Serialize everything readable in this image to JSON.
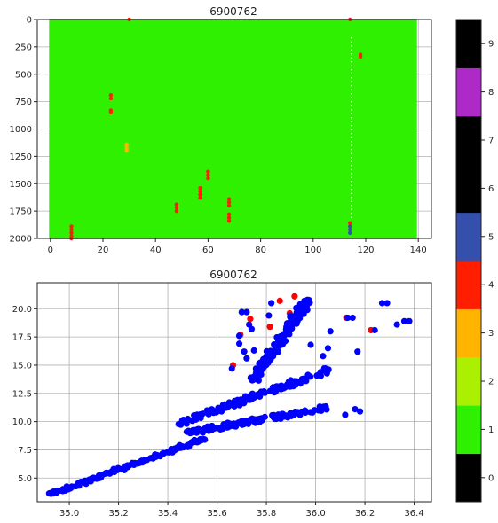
{
  "chart_data": [
    {
      "type": "scatter",
      "title": "6900762",
      "xlabel": "",
      "ylabel": "",
      "xlim": [
        -5,
        145
      ],
      "ylim": [
        2000,
        0
      ],
      "y_inverted": true,
      "grid": true,
      "x_ticks": [
        "0",
        "20",
        "40",
        "60",
        "80",
        "100",
        "120",
        "140"
      ],
      "y_ticks": [
        "0",
        "250",
        "500",
        "750",
        "1000",
        "1250",
        "1500",
        "1750",
        "2000"
      ],
      "background_flag": 1,
      "profiles_x_range": [
        0,
        139
      ],
      "depth_range": [
        0,
        2000
      ],
      "gap_profile_x": 114,
      "flagged_points": [
        {
          "x": 30,
          "y": 0,
          "flag": 4
        },
        {
          "x": 114,
          "y": 0,
          "flag": 4
        },
        {
          "x": 118,
          "y": 320,
          "flag": 4
        },
        {
          "x": 118,
          "y": 340,
          "flag": 4
        },
        {
          "x": 23,
          "y": 690,
          "flag": 4
        },
        {
          "x": 23,
          "y": 720,
          "flag": 4
        },
        {
          "x": 23,
          "y": 830,
          "flag": 4
        },
        {
          "x": 23,
          "y": 850,
          "flag": 4
        },
        {
          "x": 29,
          "y": 1140,
          "flag": 3
        },
        {
          "x": 29,
          "y": 1160,
          "flag": 3
        },
        {
          "x": 29,
          "y": 1180,
          "flag": 3
        },
        {
          "x": 29,
          "y": 1200,
          "flag": 3
        },
        {
          "x": 60,
          "y": 1390,
          "flag": 4
        },
        {
          "x": 60,
          "y": 1420,
          "flag": 4
        },
        {
          "x": 60,
          "y": 1450,
          "flag": 4
        },
        {
          "x": 57,
          "y": 1540,
          "flag": 4
        },
        {
          "x": 57,
          "y": 1570,
          "flag": 4
        },
        {
          "x": 57,
          "y": 1600,
          "flag": 4
        },
        {
          "x": 57,
          "y": 1630,
          "flag": 4
        },
        {
          "x": 68,
          "y": 1640,
          "flag": 4
        },
        {
          "x": 68,
          "y": 1670,
          "flag": 4
        },
        {
          "x": 68,
          "y": 1700,
          "flag": 4
        },
        {
          "x": 48,
          "y": 1690,
          "flag": 4
        },
        {
          "x": 48,
          "y": 1720,
          "flag": 4
        },
        {
          "x": 48,
          "y": 1750,
          "flag": 4
        },
        {
          "x": 68,
          "y": 1780,
          "flag": 4
        },
        {
          "x": 68,
          "y": 1810,
          "flag": 4
        },
        {
          "x": 68,
          "y": 1840,
          "flag": 4
        },
        {
          "x": 114,
          "y": 1860,
          "flag": 4
        },
        {
          "x": 114,
          "y": 1890,
          "flag": 5
        },
        {
          "x": 114,
          "y": 1920,
          "flag": 5
        },
        {
          "x": 114,
          "y": 1950,
          "flag": 5
        },
        {
          "x": 8,
          "y": 1890,
          "flag": 4
        },
        {
          "x": 8,
          "y": 1920,
          "flag": 4
        },
        {
          "x": 8,
          "y": 1950,
          "flag": 4
        },
        {
          "x": 8,
          "y": 1980,
          "flag": 4
        },
        {
          "x": 8,
          "y": 2000,
          "flag": 4
        }
      ],
      "colorbar": {
        "ticks": [
          "0",
          "1",
          "2",
          "3",
          "4",
          "5",
          "6",
          "7",
          "8",
          "9"
        ],
        "colors": [
          "#000000",
          "#2ef000",
          "#aaf000",
          "#ffb400",
          "#ff1e00",
          "#3450ac",
          "#000000",
          "#000000",
          "#ad2ac8",
          "#000000"
        ]
      }
    },
    {
      "type": "scatter",
      "title": "6900762",
      "xlabel": "",
      "ylabel": "",
      "xlim": [
        34.87,
        36.47
      ],
      "ylim": [
        2.9,
        22.3
      ],
      "grid": true,
      "x_ticks": [
        "35.0",
        "35.2",
        "35.4",
        "35.6",
        "35.8",
        "36.0",
        "36.2",
        "36.4"
      ],
      "y_ticks": [
        "5.0",
        "7.5",
        "10.0",
        "12.5",
        "15.0",
        "17.5",
        "20.0"
      ],
      "series": [
        {
          "marker_color": "#0000ff",
          "clusters": [
            {
              "x": [
                34.93,
                35.55
              ],
              "y": [
                3.6,
                8.5
              ],
              "spread": 0.25
            },
            {
              "x": [
                35.48,
                36.06
              ],
              "y": [
                9.0,
                11.3
              ],
              "spread": 0.45
            },
            {
              "x": [
                35.45,
                36.05
              ],
              "y": [
                9.9,
                14.5
              ],
              "spread": 0.5
            },
            {
              "x": [
                35.75,
                35.97
              ],
              "y": [
                13.8,
                20.8
              ],
              "spread": 0.9
            }
          ],
          "outliers": [
            {
              "x": 36.13,
              "y": 19.2
            },
            {
              "x": 36.15,
              "y": 19.2
            },
            {
              "x": 36.27,
              "y": 20.5
            },
            {
              "x": 36.29,
              "y": 20.5
            },
            {
              "x": 36.36,
              "y": 18.9
            },
            {
              "x": 36.38,
              "y": 18.9
            },
            {
              "x": 36.33,
              "y": 18.6
            },
            {
              "x": 36.24,
              "y": 18.1
            },
            {
              "x": 36.17,
              "y": 16.2
            },
            {
              "x": 36.06,
              "y": 18.0
            },
            {
              "x": 36.05,
              "y": 16.5
            },
            {
              "x": 36.03,
              "y": 15.8
            },
            {
              "x": 36.16,
              "y": 11.1
            },
            {
              "x": 36.18,
              "y": 10.9
            },
            {
              "x": 36.12,
              "y": 10.6
            },
            {
              "x": 35.7,
              "y": 19.7
            },
            {
              "x": 35.72,
              "y": 19.7
            },
            {
              "x": 35.73,
              "y": 18.6
            },
            {
              "x": 35.69,
              "y": 17.6
            },
            {
              "x": 35.82,
              "y": 20.5
            },
            {
              "x": 35.75,
              "y": 16.3
            },
            {
              "x": 35.81,
              "y": 19.4
            },
            {
              "x": 35.74,
              "y": 18.2
            },
            {
              "x": 35.72,
              "y": 15.6
            },
            {
              "x": 35.66,
              "y": 14.7
            },
            {
              "x": 35.69,
              "y": 16.9
            },
            {
              "x": 35.98,
              "y": 16.8
            },
            {
              "x": 35.71,
              "y": 16.2
            }
          ]
        },
        {
          "marker_color": "#ff0000",
          "points": [
            {
              "x": 35.92,
              "y": 21.1
            },
            {
              "x": 36.13,
              "y": 19.2
            },
            {
              "x": 36.23,
              "y": 18.1
            },
            {
              "x": 35.7,
              "y": 17.7
            },
            {
              "x": 35.82,
              "y": 18.4
            },
            {
              "x": 35.74,
              "y": 19.1
            },
            {
              "x": 35.9,
              "y": 19.6
            },
            {
              "x": 35.86,
              "y": 20.7
            },
            {
              "x": 35.94,
              "y": 20.2
            },
            {
              "x": 35.67,
              "y": 15.0
            }
          ]
        }
      ]
    }
  ]
}
